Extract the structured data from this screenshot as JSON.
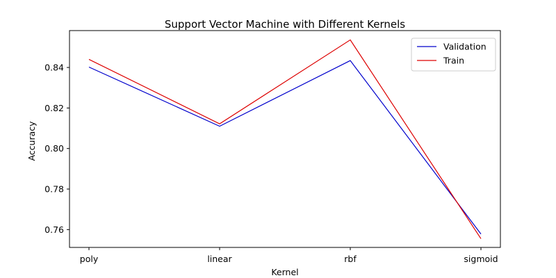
{
  "chart_data": {
    "type": "line",
    "title": "Support Vector Machine with Different Kernels",
    "xlabel": "Kernel",
    "ylabel": "Accuracy",
    "categories": [
      "poly",
      "linear",
      "rbf",
      "sigmoid"
    ],
    "ylim": [
      0.7512,
      0.8582
    ],
    "yticks": [
      0.76,
      0.78,
      0.8,
      0.82,
      0.84
    ],
    "ytick_labels": [
      "0.76",
      "0.78",
      "0.80",
      "0.82",
      "0.84"
    ],
    "grid": false,
    "legend_position": "top-right",
    "series": [
      {
        "name": "Validation",
        "color": "#0000cc",
        "values": [
          0.8402,
          0.811,
          0.8434,
          0.7578
        ]
      },
      {
        "name": "Train",
        "color": "#dd0000",
        "values": [
          0.844,
          0.8122,
          0.8536,
          0.7555
        ]
      }
    ]
  }
}
